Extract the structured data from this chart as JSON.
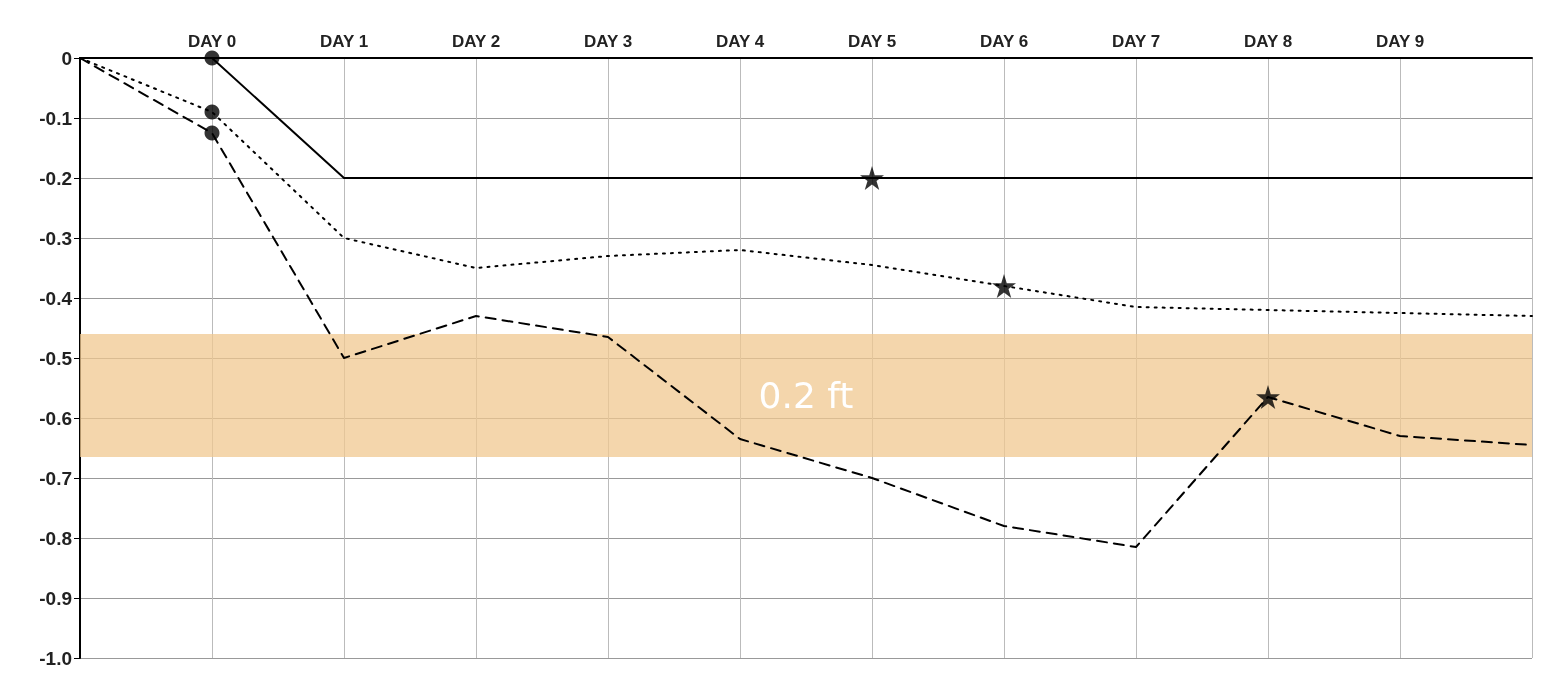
{
  "chart_data": {
    "type": "line",
    "ylim": [
      -1.0,
      0
    ],
    "categories": [
      null,
      "DAY 0",
      "DAY 1",
      "DAY 2",
      "DAY 3",
      "DAY 4",
      "DAY 5",
      "DAY 6",
      "DAY 7",
      "DAY 8",
      "DAY 9",
      null
    ],
    "yticks": [
      0,
      -0.1,
      -0.2,
      -0.3,
      -0.4,
      -0.5,
      -0.6,
      -0.7,
      -0.8,
      -0.9,
      {
        "value": -1.0,
        "label": "-1.0"
      }
    ],
    "grid": true,
    "series": [
      {
        "color": "#000000",
        "line_style": "solid",
        "marker": "none",
        "values": [
          0,
          0,
          -0.2,
          -0.2,
          -0.2,
          -0.2,
          -0.2,
          -0.2,
          -0.2,
          -0.2,
          -0.2,
          -0.2
        ]
      },
      {
        "color": "#000000",
        "line_style": "dotted",
        "marker": "none",
        "values": [
          0,
          -0.09,
          -0.3,
          -0.35,
          -0.33,
          -0.32,
          -0.345,
          -0.38,
          -0.415,
          -0.42,
          -0.425,
          -0.43
        ]
      },
      {
        "color": "#000000",
        "line_style": "dashed",
        "marker": "none",
        "values": [
          0,
          -0.125,
          -0.5,
          -0.43,
          -0.465,
          -0.635,
          -0.7,
          -0.78,
          -0.815,
          -0.565,
          -0.63,
          -0.645
        ]
      },
      {
        "type": "scatter",
        "color": "#000000",
        "marker": "circle",
        "x": [
          "DAY 0",
          "DAY 0",
          "DAY 0"
        ],
        "values": [
          0,
          -0.09,
          -0.125
        ]
      },
      {
        "type": "scatter",
        "color": "#000000",
        "marker": "star",
        "x": [
          "DAY 5",
          "DAY 6",
          "DAY 8"
        ],
        "values": [
          -0.2,
          -0.38,
          -0.565
        ]
      }
    ],
    "bands": [
      {
        "axis": "y",
        "from": -0.46,
        "to": -0.665,
        "label": "0.2 ft",
        "color": "#f0c890"
      }
    ]
  }
}
